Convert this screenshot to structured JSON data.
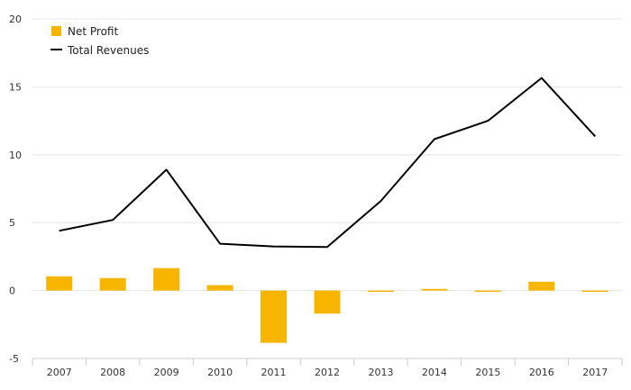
{
  "chart_data": {
    "type": "bar+line",
    "categories": [
      "2007",
      "2008",
      "2009",
      "2010",
      "2011",
      "2012",
      "2013",
      "2014",
      "2015",
      "2016",
      "2017"
    ],
    "series": [
      {
        "name": "Net Profit",
        "type": "bar",
        "color": "#F7B500",
        "values": [
          1.05,
          0.92,
          1.65,
          0.4,
          -3.85,
          -1.7,
          -0.05,
          0.12,
          -0.05,
          0.65,
          -0.05
        ]
      },
      {
        "name": "Total Revenues",
        "type": "line",
        "color": "#000000",
        "values": [
          4.4,
          5.2,
          8.9,
          3.45,
          3.25,
          3.2,
          6.6,
          11.15,
          12.5,
          15.65,
          11.35
        ]
      }
    ],
    "ylim": [
      -5,
      20
    ],
    "yticks": [
      -5,
      0,
      5,
      10,
      15,
      20
    ],
    "grid": true,
    "legend_position": "top-left",
    "title": "",
    "xlabel": "",
    "ylabel": ""
  }
}
